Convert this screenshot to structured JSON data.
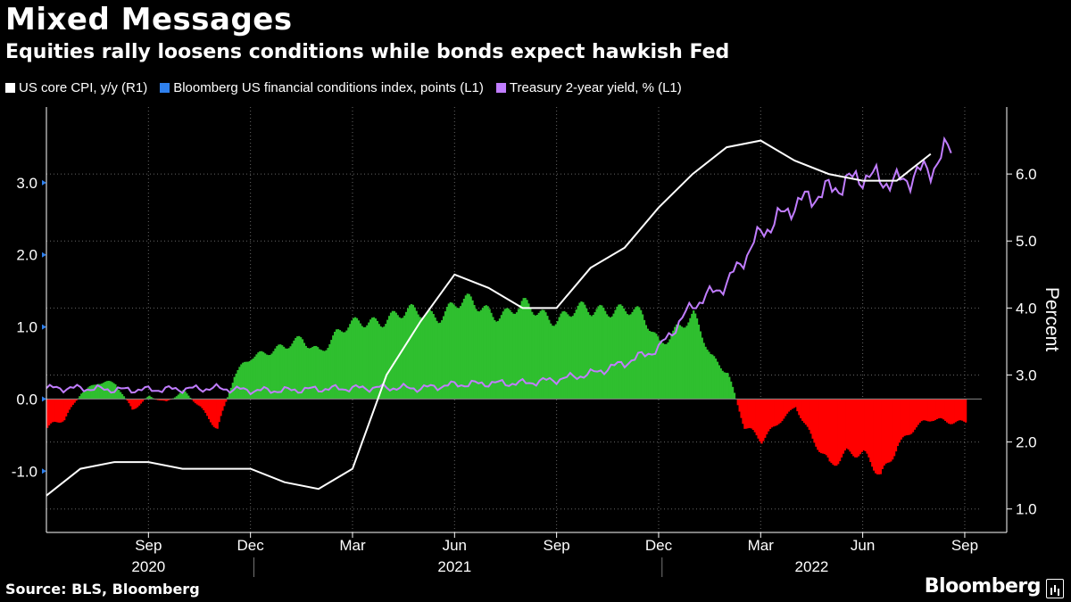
{
  "header": {
    "title": "Mixed Messages",
    "subtitle": "Equities rally loosens conditions while bonds expect hawkish Fed"
  },
  "legend": [
    {
      "label": "US core CPI, y/y (R1)",
      "color": "#ffffff"
    },
    {
      "label": "Bloomberg US financial conditions index, points (L1)",
      "color": "#2f80ed"
    },
    {
      "label": "Treasury 2-year yield, % (L1)",
      "color": "#c17dff"
    }
  ],
  "footer": {
    "source": "Source: BLS, Bloomberg",
    "brand": "Bloomberg"
  },
  "colors": {
    "positive": "#2fbf2f",
    "negative": "#ff0000",
    "cpi": "#ffffff",
    "yield": "#c17dff",
    "grid": "#666666"
  },
  "chart_data": {
    "type": "line",
    "x_start": "2020-06",
    "x_end": "2022-09",
    "left_axis": {
      "ticks": [
        "-1.0",
        "0.0",
        "1.0",
        "2.0",
        "3.0"
      ],
      "tick_values": [
        -1,
        0,
        1,
        2,
        3
      ],
      "range": [
        -1.85,
        4.05
      ]
    },
    "right_axis": {
      "label": "Percent",
      "ticks": [
        "1.0",
        "2.0",
        "3.0",
        "4.0",
        "5.0",
        "6.0"
      ],
      "tick_values": [
        1,
        2,
        3,
        4,
        5,
        6
      ],
      "range": [
        0.65,
        7.0
      ]
    },
    "x_ticks": [
      {
        "label": "Sep",
        "month": 3
      },
      {
        "label": "Dec",
        "month": 6
      },
      {
        "label": "Mar",
        "month": 9
      },
      {
        "label": "Jun",
        "month": 12
      },
      {
        "label": "Sep",
        "month": 15
      },
      {
        "label": "Dec",
        "month": 18
      },
      {
        "label": "Mar",
        "month": 21
      },
      {
        "label": "Jun",
        "month": 24
      },
      {
        "label": "Sep",
        "month": 27
      }
    ],
    "year_labels": [
      {
        "label": "2020",
        "month": 3
      },
      {
        "label": "2021",
        "month": 12
      },
      {
        "label": "2022",
        "month": 22.5
      }
    ],
    "year_dividers": [
      6.1,
      18.1
    ],
    "series": [
      {
        "name": "US core CPI, y/y (R1)",
        "axis": "right",
        "months": [
          0,
          1,
          2,
          3,
          4,
          5,
          6,
          7,
          8,
          9,
          10,
          11,
          12,
          13,
          14,
          15,
          16,
          17,
          18,
          19,
          20,
          21,
          22,
          23,
          24,
          25,
          26
        ],
        "values": [
          1.2,
          1.6,
          1.7,
          1.7,
          1.6,
          1.6,
          1.6,
          1.4,
          1.3,
          1.6,
          3.0,
          3.8,
          4.5,
          4.3,
          4.0,
          4.0,
          4.6,
          4.9,
          5.5,
          6.0,
          6.4,
          6.5,
          6.2,
          6.0,
          5.9,
          5.9,
          6.3
        ]
      },
      {
        "name": "Bloomberg US financial conditions index, points (L1)",
        "axis": "left",
        "months": [
          0,
          0.5,
          1,
          1.5,
          2,
          2.5,
          3,
          3.5,
          4,
          4.5,
          5,
          5.5,
          6,
          6.5,
          7,
          7.5,
          8,
          8.5,
          9,
          9.5,
          10,
          10.5,
          11,
          11.5,
          12,
          12.5,
          13,
          13.5,
          14,
          14.5,
          15,
          15.5,
          16,
          16.5,
          17,
          17.5,
          18,
          18.5,
          19,
          19.5,
          20,
          20.5,
          21,
          21.5,
          22,
          22.5,
          23,
          23.5,
          24,
          24.5,
          25,
          25.5,
          26,
          26.5,
          27
        ],
        "values": [
          -0.4,
          -0.3,
          0.1,
          0.25,
          0.2,
          -0.15,
          0.05,
          -0.05,
          0.1,
          -0.1,
          -0.4,
          0.3,
          0.6,
          0.7,
          0.7,
          0.8,
          0.7,
          0.9,
          1.0,
          1.1,
          1.15,
          1.15,
          1.2,
          1.2,
          1.3,
          1.3,
          1.25,
          1.2,
          1.25,
          1.2,
          1.15,
          1.2,
          1.2,
          1.3,
          1.25,
          1.1,
          0.8,
          1.0,
          1.1,
          0.6,
          0.4,
          -0.4,
          -0.6,
          -0.3,
          -0.1,
          -0.6,
          -0.9,
          -0.7,
          -0.8,
          -1.1,
          -0.6,
          -0.4,
          -0.3,
          -0.3,
          -0.3
        ]
      },
      {
        "name": "Treasury 2-year yield, % (L1)",
        "axis": "left",
        "months": [
          0,
          1,
          2,
          3,
          4,
          5,
          6,
          7,
          8,
          9,
          10,
          11,
          12,
          13,
          14,
          15,
          16,
          17,
          18,
          19,
          20,
          21,
          22,
          23,
          24,
          25,
          26,
          26.6
        ],
        "values": [
          0.15,
          0.15,
          0.13,
          0.13,
          0.14,
          0.15,
          0.12,
          0.12,
          0.14,
          0.15,
          0.16,
          0.15,
          0.2,
          0.22,
          0.22,
          0.27,
          0.35,
          0.5,
          0.7,
          1.3,
          1.6,
          2.3,
          2.7,
          2.9,
          3.1,
          3.0,
          3.2,
          3.5
        ]
      }
    ]
  }
}
